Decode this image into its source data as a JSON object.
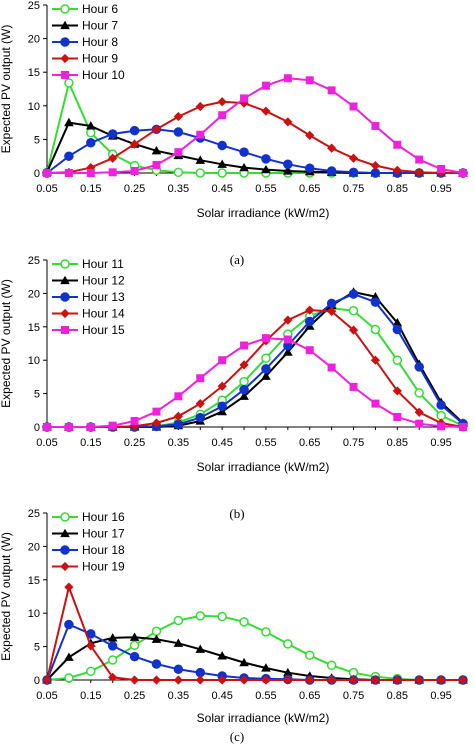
{
  "chart_data": [
    {
      "type": "line",
      "caption": "(a)",
      "xlabel": "Solar irradiance (kW/m2)",
      "ylabel": "Expected PV output (W)",
      "ylim": [
        0,
        25
      ],
      "yticks": [
        0,
        5,
        10,
        15,
        20,
        25
      ],
      "xlim": [
        0.05,
        1.0
      ],
      "xticks": [
        "0.05",
        "0.15",
        "0.25",
        "0.35",
        "0.45",
        "0.55",
        "0.65",
        "0.75",
        "0.85",
        "0.95"
      ],
      "legend_position": "top-left",
      "x": [
        0.05,
        0.1,
        0.15,
        0.2,
        0.25,
        0.3,
        0.35,
        0.4,
        0.45,
        0.5,
        0.55,
        0.6,
        0.65,
        0.7,
        0.75,
        0.8,
        0.85,
        0.9,
        0.95,
        1.0
      ],
      "series": [
        {
          "name": "Hour 6",
          "color": "#33dd33",
          "marker": "circle-open",
          "values": [
            0.1,
            13.4,
            6,
            2.8,
            1.1,
            0.4,
            0.1,
            0,
            0,
            0,
            0,
            0,
            0,
            0,
            0,
            0,
            0,
            0,
            0,
            0
          ]
        },
        {
          "name": "Hour 7",
          "color": "#000000",
          "marker": "triangle",
          "values": [
            0.1,
            7.5,
            7,
            5.5,
            4.3,
            3.3,
            2.6,
            1.9,
            1.3,
            0.8,
            0.5,
            0.3,
            0.2,
            0.1,
            0,
            0,
            0,
            0,
            0,
            0
          ]
        },
        {
          "name": "Hour 8",
          "color": "#1133cc",
          "marker": "circle",
          "values": [
            0,
            2.5,
            4.5,
            5.8,
            6.3,
            6.5,
            6.1,
            5.2,
            4.1,
            3.1,
            2.1,
            1.3,
            0.7,
            0.3,
            0.1,
            0,
            0,
            0,
            0,
            0
          ]
        },
        {
          "name": "Hour 9",
          "color": "#cc1111",
          "marker": "diamond",
          "values": [
            0,
            0.1,
            0.8,
            2.2,
            4.3,
            6.5,
            8.4,
            9.9,
            10.6,
            10.4,
            9.2,
            7.6,
            5.6,
            3.7,
            2.2,
            1.1,
            0.4,
            0.1,
            0,
            0
          ]
        },
        {
          "name": "Hour 10",
          "color": "#ee22dd",
          "marker": "square",
          "values": [
            0,
            0,
            0,
            0.1,
            0.3,
            1.2,
            3.1,
            5.7,
            8.6,
            11.1,
            13,
            14.1,
            13.8,
            12.3,
            9.9,
            7,
            4.2,
            2,
            0.6,
            0
          ]
        }
      ]
    },
    {
      "type": "line",
      "caption": "(b)",
      "xlabel": "Solar irradiance (kW/m2)",
      "ylabel": "Expected PV output (W)",
      "ylim": [
        0,
        25
      ],
      "yticks": [
        0,
        5,
        10,
        15,
        20,
        25
      ],
      "xlim": [
        0.05,
        1.0
      ],
      "xticks": [
        "0.05",
        "0.15",
        "0.25",
        "0.35",
        "0.45",
        "0.55",
        "0.65",
        "0.75",
        "0.85",
        "0.95"
      ],
      "legend_position": "top-left",
      "x": [
        0.05,
        0.1,
        0.15,
        0.2,
        0.25,
        0.3,
        0.35,
        0.4,
        0.45,
        0.5,
        0.55,
        0.6,
        0.65,
        0.7,
        0.75,
        0.8,
        0.85,
        0.9,
        0.95,
        1.0
      ],
      "series": [
        {
          "name": "Hour 11",
          "color": "#33dd33",
          "marker": "circle-open",
          "values": [
            0,
            0,
            0,
            0,
            0,
            0.1,
            0.7,
            1.9,
            4,
            6.8,
            10.3,
            13.9,
            16.6,
            17.8,
            17.4,
            14.6,
            10,
            5.1,
            1.7,
            0.2
          ]
        },
        {
          "name": "Hour 12",
          "color": "#000000",
          "marker": "triangle",
          "values": [
            0,
            0,
            0,
            0,
            0,
            0,
            0.2,
            0.9,
            2.3,
            4.6,
            7.6,
            11.2,
            15.1,
            18.2,
            20.2,
            19.5,
            15.6,
            9.4,
            3.7,
            0.6
          ]
        },
        {
          "name": "Hour 13",
          "color": "#1133cc",
          "marker": "circle",
          "values": [
            0,
            0,
            0,
            0,
            0,
            0.1,
            0.4,
            1.4,
            3.1,
            5.6,
            8.7,
            12.2,
            15.8,
            18.5,
            19.9,
            18.7,
            14.6,
            9,
            3.3,
            0.5
          ]
        },
        {
          "name": "Hour 14",
          "color": "#cc1111",
          "marker": "diamond",
          "values": [
            0,
            0,
            0,
            0,
            0.1,
            0.6,
            1.6,
            3.5,
            6.1,
            9.3,
            12.9,
            16,
            17.5,
            17.3,
            14.5,
            10,
            5.4,
            2.2,
            0.6,
            0
          ]
        },
        {
          "name": "Hour 15",
          "color": "#ee22dd",
          "marker": "square",
          "values": [
            0,
            0,
            0,
            0.2,
            0.9,
            2.3,
            4.6,
            7.3,
            10,
            12.2,
            13.3,
            13.1,
            11.5,
            8.9,
            6,
            3.5,
            1.5,
            0.5,
            0.1,
            0
          ]
        }
      ]
    },
    {
      "type": "line",
      "caption": "(c)",
      "xlabel": "Solar irradiance (kW/m2)",
      "ylabel": "Expected PV output (W)",
      "ylim": [
        0,
        25
      ],
      "yticks": [
        0,
        5,
        10,
        15,
        20,
        25
      ],
      "xlim": [
        0.05,
        1.0
      ],
      "xticks": [
        "0.05",
        "0.15",
        "0.25",
        "0.35",
        "0.45",
        "0.55",
        "0.65",
        "0.75",
        "0.85",
        "0.95"
      ],
      "legend_position": "top-left",
      "x": [
        0.05,
        0.1,
        0.15,
        0.2,
        0.25,
        0.3,
        0.35,
        0.4,
        0.45,
        0.5,
        0.55,
        0.6,
        0.65,
        0.7,
        0.75,
        0.8,
        0.85,
        0.9,
        0.95,
        1.0
      ],
      "series": [
        {
          "name": "Hour 16",
          "color": "#33dd33",
          "marker": "circle-open",
          "values": [
            0,
            0.3,
            1.3,
            3,
            5.2,
            7.3,
            8.9,
            9.6,
            9.5,
            8.7,
            7.2,
            5.4,
            3.7,
            2.2,
            1.1,
            0.5,
            0.2,
            0,
            0,
            0
          ]
        },
        {
          "name": "Hour 17",
          "color": "#000000",
          "marker": "triangle",
          "values": [
            0,
            3.4,
            5.5,
            6.3,
            6.4,
            6.1,
            5.5,
            4.6,
            3.6,
            2.6,
            1.8,
            1.1,
            0.6,
            0.3,
            0.1,
            0,
            0,
            0,
            0,
            0
          ]
        },
        {
          "name": "Hour 18",
          "color": "#1133cc",
          "marker": "circle",
          "values": [
            0,
            8.3,
            6.9,
            5.1,
            3.5,
            2.4,
            1.6,
            1.1,
            0.6,
            0.3,
            0.2,
            0.1,
            0,
            0,
            0,
            0,
            0,
            0,
            0,
            0
          ]
        },
        {
          "name": "Hour 19",
          "color": "#cc1111",
          "marker": "diamond",
          "values": [
            0,
            13.9,
            5.1,
            0.4,
            0,
            0,
            0,
            0,
            0,
            0,
            0,
            0,
            0,
            0,
            0,
            0,
            0,
            0,
            0,
            0
          ]
        }
      ]
    }
  ]
}
